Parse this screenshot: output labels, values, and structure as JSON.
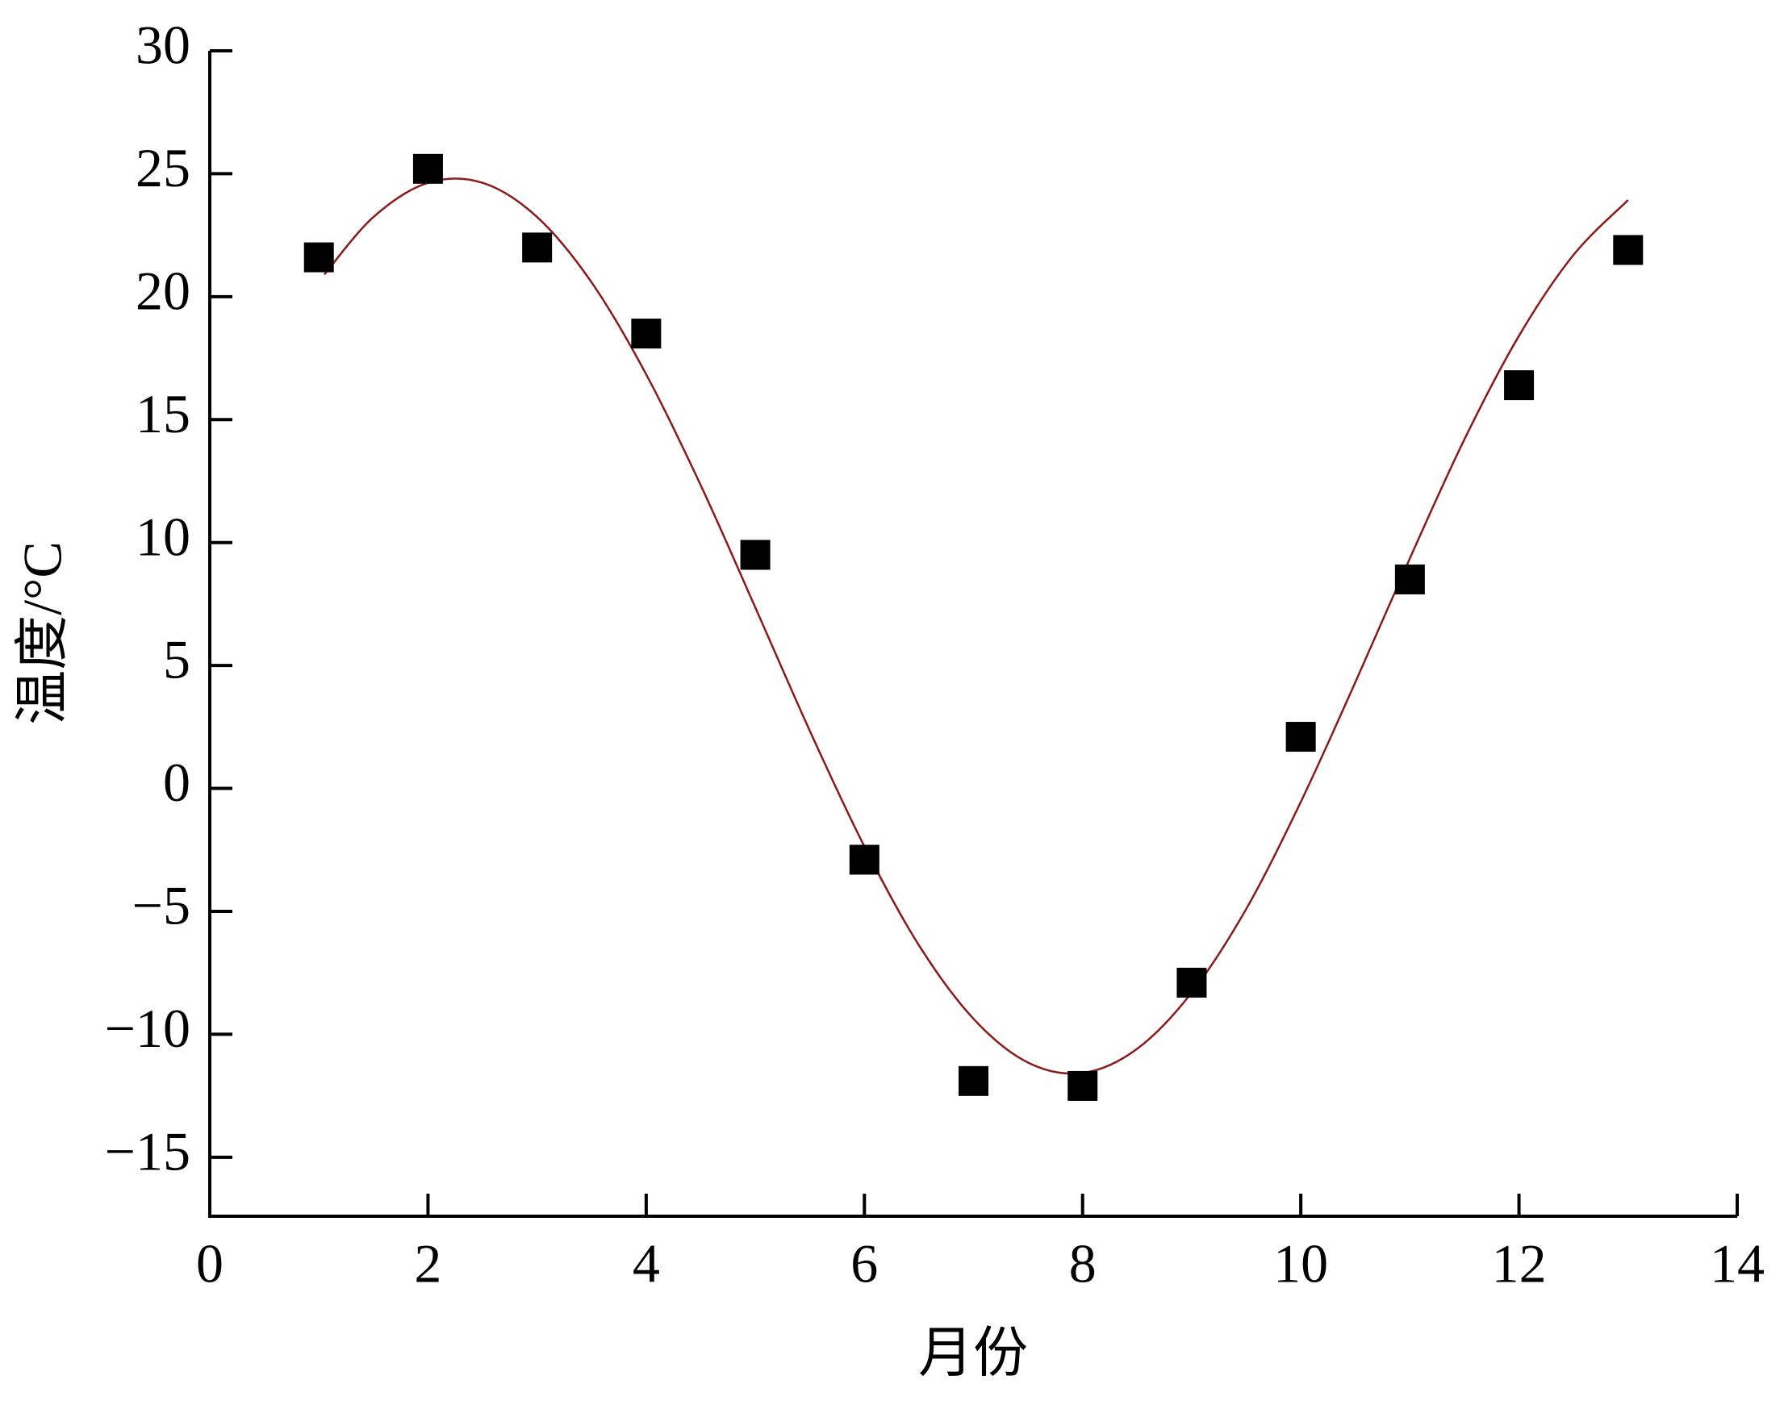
{
  "chart_data": {
    "type": "scatter",
    "x_label": "月份",
    "y_label": "温度/°C",
    "xlim": [
      0,
      14
    ],
    "ylim": [
      -17.4,
      30
    ],
    "xticks": [
      0,
      2,
      4,
      6,
      8,
      10,
      12,
      14
    ],
    "yticks": [
      {
        "value": -15,
        "label": "−15"
      },
      {
        "value": -10,
        "label": "−10"
      },
      {
        "value": -5,
        "label": "−5"
      },
      0,
      5,
      10,
      15,
      20,
      25,
      30
    ],
    "series": [
      {
        "type": "scatter",
        "color": "#000000",
        "x": [
          1,
          2,
          3,
          4,
          5,
          6,
          7,
          8,
          9,
          10,
          11,
          12,
          13
        ],
        "values": [
          21.6,
          25.2,
          22.0,
          18.5,
          9.5,
          -2.9,
          -11.9,
          -12.1,
          -7.9,
          2.1,
          8.5,
          16.4,
          21.9
        ]
      },
      {
        "type": "line",
        "color": "#8b1a1a",
        "x": [
          1.05,
          1.5,
          2,
          2.5,
          3,
          3.5,
          4,
          4.5,
          5,
          5.5,
          6,
          6.5,
          7,
          7.5,
          8,
          8.5,
          9,
          9.5,
          10,
          10.5,
          11,
          11.5,
          12,
          12.5,
          13
        ],
        "values": [
          20.9,
          23.24,
          24.63,
          24.63,
          23.24,
          20.58,
          16.84,
          12.33,
          7.36,
          2.34,
          -2.36,
          -6.38,
          -9.37,
          -11.15,
          -11.57,
          -10.59,
          -8.3,
          -4.9,
          -0.55,
          4.32,
          9.36,
          14.2,
          18.41,
          21.7,
          23.93
        ]
      }
    ]
  }
}
